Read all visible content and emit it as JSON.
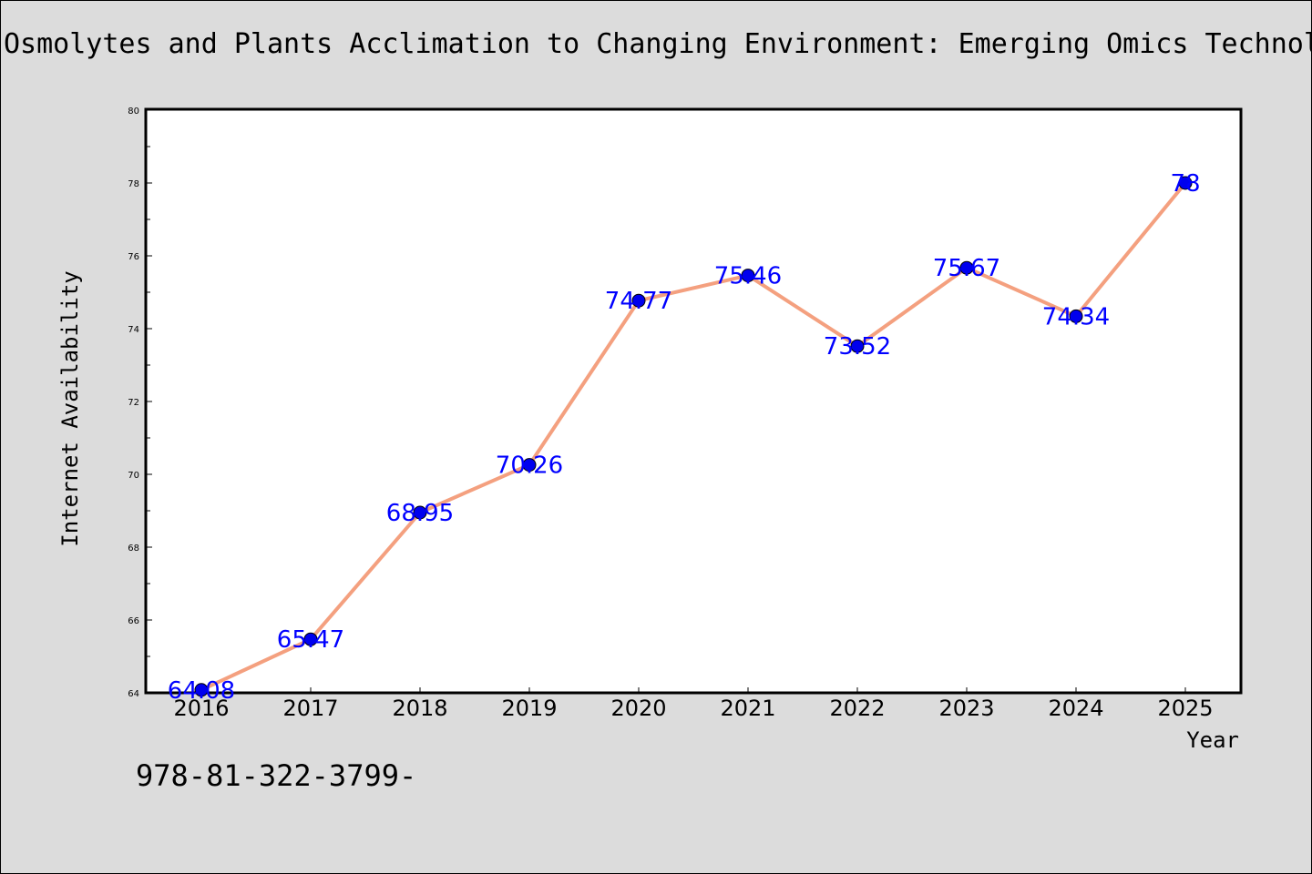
{
  "chart_data": {
    "type": "line",
    "title": "Osmolytes and Plants Acclimation to Changing Environment: Emerging Omics Technologies",
    "xlabel": "Year",
    "ylabel": "Internet Availability",
    "categories": [
      "2016",
      "2017",
      "2018",
      "2019",
      "2020",
      "2021",
      "2022",
      "2023",
      "2024",
      "2025"
    ],
    "series": [
      {
        "values": [
          64.08,
          65.47,
          68.95,
          70.26,
          74.77,
          75.46,
          73.52,
          75.67,
          74.34,
          78
        ],
        "labels": [
          "64.08",
          "65.47",
          "68.95",
          "70.26",
          "74.77",
          "75.46",
          "73.52",
          "75.67",
          "74.34",
          "78"
        ]
      }
    ],
    "ylim": [
      64,
      80
    ],
    "yticks": [
      64,
      66,
      68,
      70,
      72,
      74,
      76,
      78,
      80
    ],
    "ytick_labels": [
      "64",
      "66",
      "68",
      "70",
      "72",
      "74",
      "76",
      "78",
      "80"
    ],
    "grid": false,
    "legend": "none",
    "colors": {
      "line": "#f4a07f",
      "marker": "#0000ee",
      "label": "#0000ff",
      "plot_background": "#ffffff",
      "figure_background": "#dcdcdc"
    }
  },
  "footer": {
    "text": "978-81-322-3799-"
  }
}
